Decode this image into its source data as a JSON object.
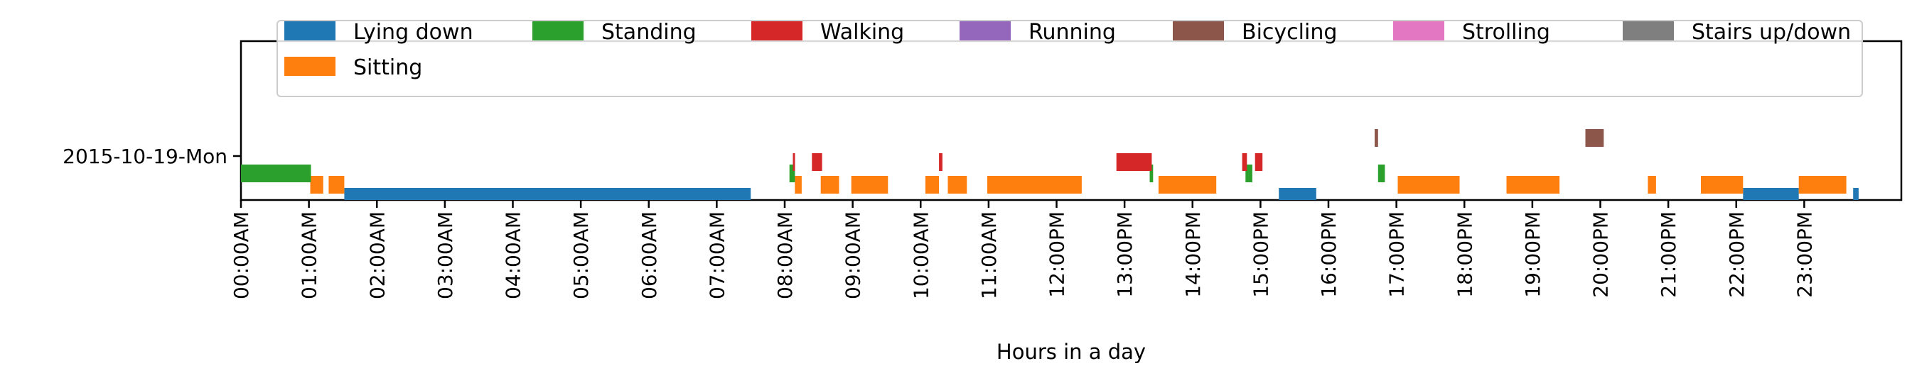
{
  "chart_data": {
    "type": "timeline",
    "title": "",
    "xlabel": "Hours in a day",
    "ylabel": "",
    "xlim_hours": [
      0,
      24
    ],
    "x_ticks": [
      "00:00AM",
      "01:00AM",
      "02:00AM",
      "03:00AM",
      "04:00AM",
      "05:00AM",
      "06:00AM",
      "07:00AM",
      "08:00AM",
      "09:00AM",
      "10:00AM",
      "11:00AM",
      "12:00PM",
      "13:00PM",
      "14:00PM",
      "15:00PM",
      "16:00PM",
      "17:00PM",
      "18:00PM",
      "19:00PM",
      "20:00PM",
      "21:00PM",
      "22:00PM",
      "23:00PM"
    ],
    "y_categories": [
      "2015-10-19-Mon"
    ],
    "legend_position": "top",
    "series": [
      {
        "name": "Lying down",
        "color": "#1f77b4",
        "lane": 0,
        "intervals": [
          [
            1.52,
            7.5
          ],
          [
            15.27,
            15.82
          ],
          [
            22.1,
            22.92
          ],
          [
            23.72,
            23.8
          ]
        ]
      },
      {
        "name": "Sitting",
        "color": "#ff7f0e",
        "lane": 1,
        "intervals": [
          [
            1.02,
            1.21
          ],
          [
            1.29,
            1.52
          ],
          [
            8.15,
            8.25
          ],
          [
            8.53,
            8.8
          ],
          [
            8.98,
            9.52
          ],
          [
            10.07,
            10.27
          ],
          [
            10.4,
            10.68
          ],
          [
            10.98,
            12.37
          ],
          [
            13.5,
            14.35
          ],
          [
            17.02,
            17.93
          ],
          [
            18.62,
            19.4
          ],
          [
            20.7,
            20.82
          ],
          [
            21.48,
            22.1
          ],
          [
            22.92,
            23.62
          ]
        ]
      },
      {
        "name": "Standing",
        "color": "#2ca02c",
        "lane": 2,
        "intervals": [
          [
            0.0,
            1.03
          ],
          [
            8.07,
            8.15
          ],
          [
            13.37,
            13.42
          ],
          [
            14.78,
            14.88
          ],
          [
            16.73,
            16.83
          ]
        ]
      },
      {
        "name": "Walking",
        "color": "#d62728",
        "lane": 3,
        "intervals": [
          [
            8.12,
            8.15
          ],
          [
            8.4,
            8.55
          ],
          [
            10.27,
            10.32
          ],
          [
            12.88,
            13.4
          ],
          [
            14.73,
            14.8
          ],
          [
            14.92,
            15.03
          ]
        ]
      },
      {
        "name": "Running",
        "color": "#9467bd",
        "lane": 4,
        "intervals": []
      },
      {
        "name": "Bicycling",
        "color": "#8c564b",
        "lane": 5,
        "intervals": [
          [
            16.68,
            16.73
          ],
          [
            19.78,
            20.05
          ]
        ]
      },
      {
        "name": "Strolling",
        "color": "#e377c2",
        "lane": 6,
        "intervals": []
      },
      {
        "name": "Stairs up/down",
        "color": "#7f7f7f",
        "lane": 7,
        "intervals": []
      }
    ]
  }
}
